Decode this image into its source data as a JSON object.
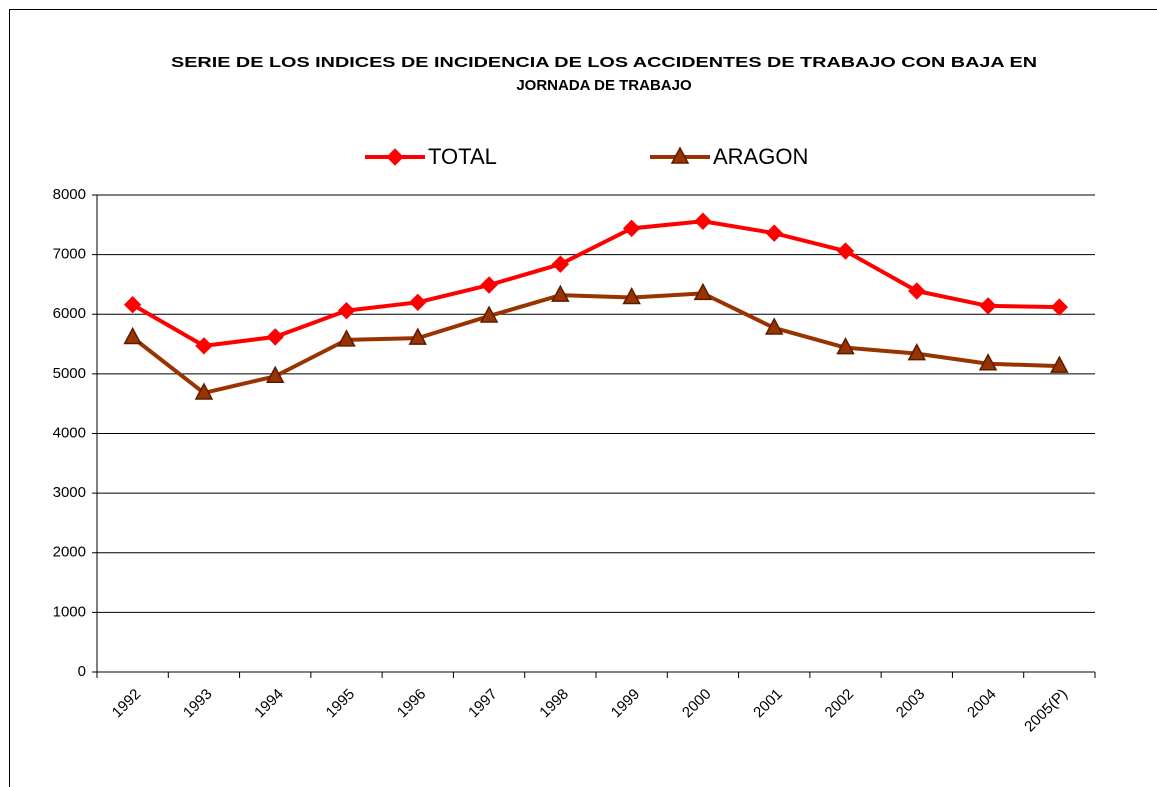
{
  "chart_data": {
    "type": "line",
    "title": [
      "SERIE DE LOS INDICES DE INCIDENCIA DE LOS ACCIDENTES DE TRABAJO CON BAJA EN",
      "JORNADA DE TRABAJO"
    ],
    "categories": [
      "1992",
      "1993",
      "1994",
      "1995",
      "1996",
      "1997",
      "1998",
      "1999",
      "2000",
      "2001",
      "2002",
      "2003",
      "2004",
      "2005(P)"
    ],
    "series": [
      {
        "name": "TOTAL",
        "color": "#ff0000",
        "marker": "diamond",
        "values": [
          6160,
          5470,
          5620,
          6060,
          6200,
          6490,
          6840,
          7440,
          7560,
          7360,
          7060,
          6390,
          6140,
          6120
        ]
      },
      {
        "name": "ARAGON",
        "color": "#993300",
        "marker": "triangle",
        "values": [
          5610,
          4680,
          4960,
          5570,
          5600,
          5970,
          6320,
          6280,
          6350,
          5770,
          5440,
          5340,
          5170,
          5130
        ]
      }
    ],
    "ylim": [
      0,
      8000
    ],
    "yticks": [
      0,
      1000,
      2000,
      3000,
      4000,
      5000,
      6000,
      7000,
      8000
    ],
    "grid": true,
    "legend": "top"
  }
}
